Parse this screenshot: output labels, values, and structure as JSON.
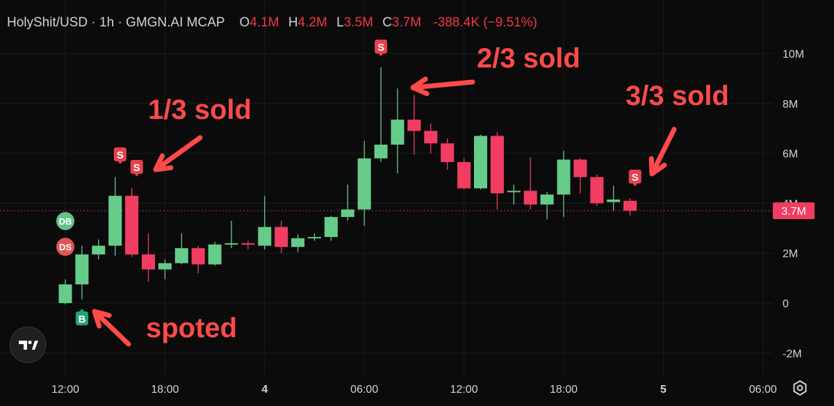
{
  "header": {
    "symbol": "HolyShit/USD · 1h · GMGN.AI MCAP",
    "o_label": "O",
    "o": "4.1M",
    "h_label": "H",
    "h": "4.2M",
    "l_label": "L",
    "l": "3.5M",
    "c_label": "C",
    "c": "3.7M",
    "change": "-388.4K (−9.51%)"
  },
  "annotations": {
    "sold_1": "1/3 sold",
    "sold_2": "2/3 sold",
    "sold_3": "3/3 sold",
    "spotted": "spoted"
  },
  "markers": {
    "buy": "B",
    "sell": "S",
    "db": "DB",
    "ds": "DS"
  },
  "current_price_label": "3.7M",
  "icons": {
    "logo": "tradingview-logo-icon",
    "settings": "settings-gear-icon"
  },
  "colors": {
    "up": "#66cc8a",
    "down": "#f23d63",
    "annotation": "#ff4a4a",
    "background": "#0b0b0b",
    "sell_marker": "#e8414d",
    "buy_marker": "#1fa672"
  },
  "chart_data": {
    "type": "candlestick",
    "y_ticks": [
      {
        "value": 10000000,
        "label": "10M"
      },
      {
        "value": 8000000,
        "label": "8M"
      },
      {
        "value": 6000000,
        "label": "6M"
      },
      {
        "value": 4000000,
        "label": "4M"
      },
      {
        "value": 2000000,
        "label": "2M"
      },
      {
        "value": 0,
        "label": "0"
      },
      {
        "value": -2000000,
        "label": "-2M"
      }
    ],
    "x_ticks": [
      {
        "hour": 12,
        "label": "12:00"
      },
      {
        "hour": 18,
        "label": "18:00"
      },
      {
        "hour": 24,
        "label": "4",
        "bold": true
      },
      {
        "hour": 30,
        "label": "06:00"
      },
      {
        "hour": 36,
        "label": "12:00"
      },
      {
        "hour": 42,
        "label": "18:00"
      },
      {
        "hour": 48,
        "label": "5",
        "bold": true
      },
      {
        "hour": 54,
        "label": "06:00"
      }
    ],
    "candles": [
      {
        "h": 12,
        "o": 0.0,
        "hi": 0.95,
        "lo": -0.05,
        "c": 0.75
      },
      {
        "h": 13,
        "o": 0.75,
        "hi": 2.3,
        "lo": 0.15,
        "c": 1.95
      },
      {
        "h": 14,
        "o": 1.95,
        "hi": 2.55,
        "lo": 1.75,
        "c": 2.3
      },
      {
        "h": 15,
        "o": 2.3,
        "hi": 5.05,
        "lo": 1.9,
        "c": 4.3
      },
      {
        "h": 16,
        "o": 4.3,
        "hi": 4.6,
        "lo": 1.85,
        "c": 1.95
      },
      {
        "h": 17,
        "o": 1.95,
        "hi": 2.8,
        "lo": 0.85,
        "c": 1.35
      },
      {
        "h": 18,
        "o": 1.35,
        "hi": 1.75,
        "lo": 0.95,
        "c": 1.6
      },
      {
        "h": 19,
        "o": 1.6,
        "hi": 2.8,
        "lo": 1.55,
        "c": 2.2
      },
      {
        "h": 20,
        "o": 2.2,
        "hi": 2.3,
        "lo": 1.2,
        "c": 1.55
      },
      {
        "h": 21,
        "o": 1.55,
        "hi": 2.45,
        "lo": 1.5,
        "c": 2.35
      },
      {
        "h": 22,
        "o": 2.35,
        "hi": 3.3,
        "lo": 2.2,
        "c": 2.4
      },
      {
        "h": 23,
        "o": 2.4,
        "hi": 2.5,
        "lo": 2.15,
        "c": 2.35
      },
      {
        "h": 24,
        "o": 2.3,
        "hi": 4.3,
        "lo": 2.15,
        "c": 3.05
      },
      {
        "h": 25,
        "o": 3.05,
        "hi": 3.3,
        "lo": 2.0,
        "c": 2.25
      },
      {
        "h": 26,
        "o": 2.25,
        "hi": 2.75,
        "lo": 2.05,
        "c": 2.6
      },
      {
        "h": 27,
        "o": 2.6,
        "hi": 2.8,
        "lo": 2.5,
        "c": 2.65
      },
      {
        "h": 28,
        "o": 2.65,
        "hi": 3.5,
        "lo": 2.5,
        "c": 3.45
      },
      {
        "h": 29,
        "o": 3.45,
        "hi": 4.75,
        "lo": 3.3,
        "c": 3.75
      },
      {
        "h": 30,
        "o": 3.75,
        "hi": 6.5,
        "lo": 3.1,
        "c": 5.8
      },
      {
        "h": 31,
        "o": 5.8,
        "hi": 9.45,
        "lo": 5.65,
        "c": 6.35
      },
      {
        "h": 32,
        "o": 6.35,
        "hi": 8.6,
        "lo": 5.2,
        "c": 7.35
      },
      {
        "h": 33,
        "o": 7.35,
        "hi": 8.35,
        "lo": 5.95,
        "c": 6.9
      },
      {
        "h": 34,
        "o": 6.9,
        "hi": 7.2,
        "lo": 6.0,
        "c": 6.4
      },
      {
        "h": 35,
        "o": 6.4,
        "hi": 6.6,
        "lo": 5.35,
        "c": 5.65
      },
      {
        "h": 36,
        "o": 5.65,
        "hi": 5.8,
        "lo": 4.55,
        "c": 4.6
      },
      {
        "h": 37,
        "o": 4.6,
        "hi": 6.75,
        "lo": 4.55,
        "c": 6.7
      },
      {
        "h": 38,
        "o": 6.7,
        "hi": 6.85,
        "lo": 3.75,
        "c": 4.4
      },
      {
        "h": 39,
        "o": 4.45,
        "hi": 4.75,
        "lo": 3.95,
        "c": 4.5
      },
      {
        "h": 40,
        "o": 4.5,
        "hi": 5.85,
        "lo": 3.75,
        "c": 3.95
      },
      {
        "h": 41,
        "o": 3.95,
        "hi": 4.45,
        "lo": 3.35,
        "c": 4.35
      },
      {
        "h": 42,
        "o": 4.35,
        "hi": 6.1,
        "lo": 3.45,
        "c": 5.75
      },
      {
        "h": 43,
        "o": 5.75,
        "hi": 5.8,
        "lo": 4.4,
        "c": 5.05
      },
      {
        "h": 44,
        "o": 5.05,
        "hi": 5.15,
        "lo": 3.9,
        "c": 4.0
      },
      {
        "h": 45,
        "o": 4.05,
        "hi": 4.7,
        "lo": 3.7,
        "c": 4.15
      },
      {
        "h": 46,
        "o": 4.1,
        "hi": 4.2,
        "lo": 3.5,
        "c": 3.7
      }
    ],
    "current_value": 3.7,
    "unit": "M"
  }
}
